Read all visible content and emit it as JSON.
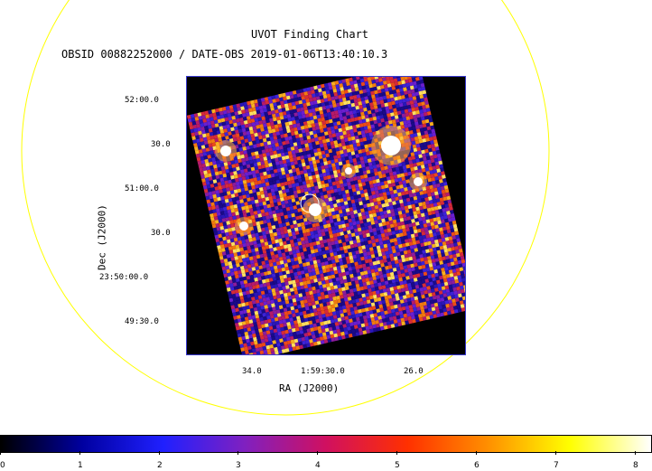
{
  "header": {
    "title": "UVOT Finding Chart",
    "subtitle": "OBSID 00882252000 / DATE-OBS 2019-01-06T13:40:10.3"
  },
  "axes": {
    "xlabel": "RA (J2000)",
    "ylabel": "Dec (J2000)",
    "x_ticks": [
      "34.0",
      "1:59:30.0",
      "26.0"
    ],
    "y_ticks": [
      "52:00.0",
      "30.0",
      "51:00.0",
      "30.0",
      "23:50:00.0",
      "49:30.0"
    ]
  },
  "colorbar": {
    "ticks": [
      "0",
      "1",
      "2",
      "3",
      "4",
      "5",
      "6",
      "7",
      "8"
    ],
    "colors": [
      "#000000",
      "#0000a0",
      "#2020ff",
      "#8020c0",
      "#d01060",
      "#ff3000",
      "#ff9000",
      "#ffff00",
      "#ffffff"
    ]
  },
  "colors": {
    "circle": "#ffff00",
    "target_marker": "#ffffff",
    "frame_border": "#3a3ad0"
  }
}
